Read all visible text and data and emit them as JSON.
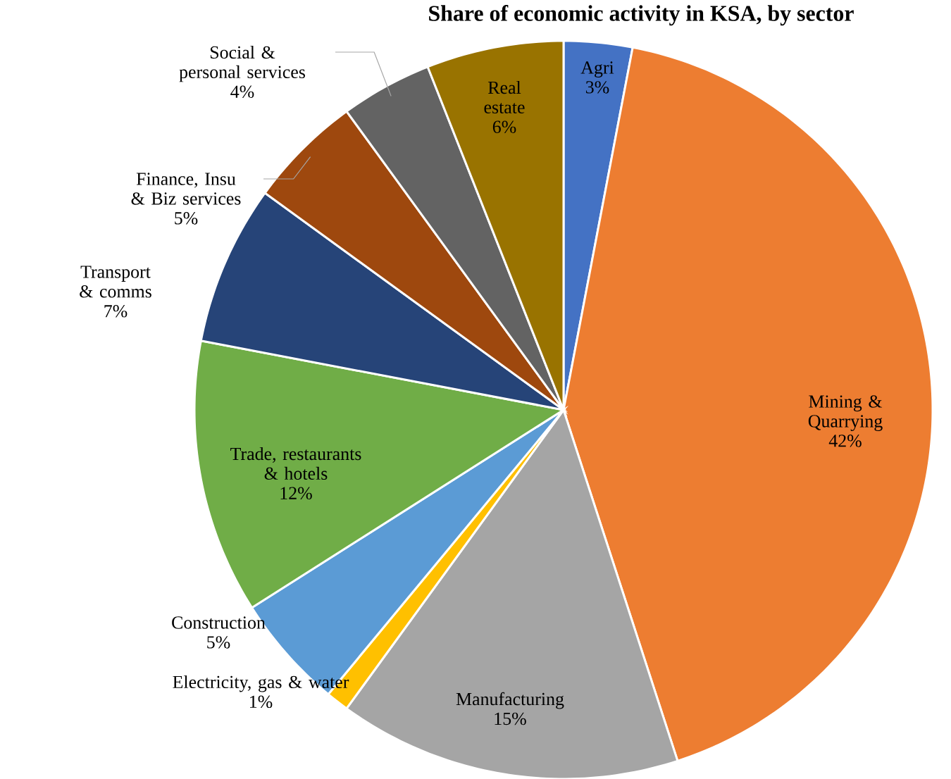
{
  "chart_data": {
    "type": "pie",
    "title": "Share of economic activity in KSA, by sector",
    "categories": [
      "Agri",
      "Mining & Quarrying",
      "Manufacturing",
      "Electricity, gas & water",
      "Construction",
      "Trade, restaurants & hotels",
      "Transport & comms",
      "Finance, Insu & Biz services",
      "Social & personal services",
      "Real estate"
    ],
    "values": [
      3,
      42,
      15,
      1,
      5,
      12,
      7,
      5,
      4,
      6
    ],
    "value_labels": [
      "3%",
      "42%",
      "15%",
      "1%",
      "5%",
      "12%",
      "7%",
      "5%",
      "4%",
      "6%"
    ],
    "colors": [
      "#4472c4",
      "#ed7d31",
      "#a5a5a5",
      "#ffc000",
      "#5b9bd5",
      "#70ad47",
      "#264478",
      "#9e480e",
      "#636363",
      "#997300"
    ]
  }
}
